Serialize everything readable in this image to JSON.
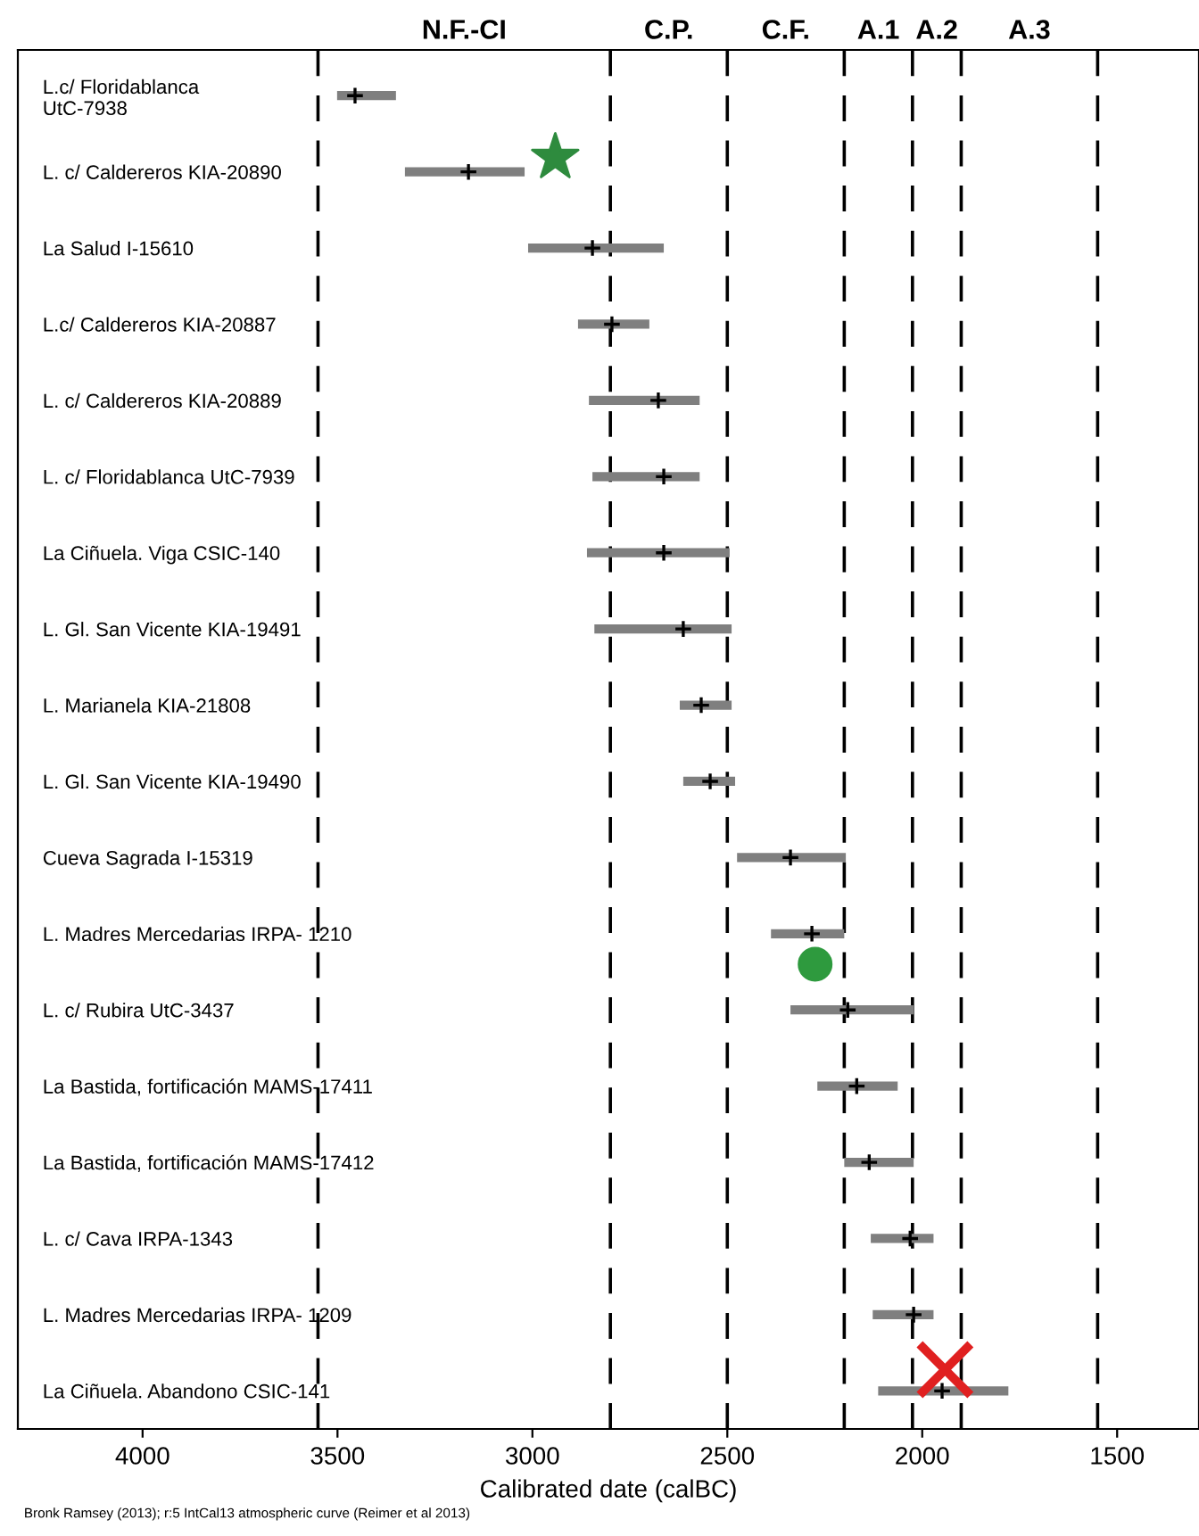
{
  "chart_data": {
    "type": "bar",
    "orientation": "horizontal",
    "xlabel": "Calibrated date (calBC)",
    "categories": [
      "L.c/ Floridablanca\nUtC-7938",
      "L. c/ Caldereros KIA-20890",
      "La Salud I-15610",
      "L.c/ Caldereros KIA-20887",
      "L. c/ Caldereros KIA-20889",
      "L. c/ Floridablanca UtC-7939",
      "La Ciñuela. Viga CSIC-140",
      "L. Gl. San Vicente KIA-19491",
      "L. Marianela KIA-21808",
      "L. Gl. San Vicente KIA-19490",
      "Cueva Sagrada I-15319",
      "L. Madres Mercedarias IRPA- 1210",
      "L. c/ Rubira UtC-3437",
      "La Bastida, fortificación MAMS-17411",
      "La Bastida, fortificación MAMS-17412",
      "L. c/ Cava IRPA-1343",
      "L. Madres Mercedarias IRPA- 1209",
      "La Ciñuela. Abandono CSIC-141"
    ],
    "series": [
      {
        "color": "#7f7f7f",
        "base": [
          3350,
          3020,
          2663,
          2700,
          2571,
          2571,
          2494,
          2489,
          2489,
          2480,
          2196,
          2200,
          2022,
          2063,
          2022,
          1971,
          1971,
          1779
        ],
        "values": [
          151,
          307,
          348,
          183,
          284,
          275,
          366,
          352,
          133,
          133,
          279,
          188,
          316,
          206,
          178,
          161,
          156,
          334
        ]
      },
      {
        "type": "scatter",
        "marker": "cross",
        "color": "#000000",
        "values": [
          3455,
          3164,
          2846,
          2796,
          2677,
          2663,
          2663,
          2613,
          2567,
          2544,
          2338,
          2283,
          2191,
          2168,
          2136,
          2031,
          2022,
          1949
        ]
      }
    ],
    "xlim": [
      4320,
      1290
    ],
    "xticks": [
      4000,
      3500,
      3000,
      2500,
      2000,
      1500
    ],
    "ref_lines": [
      {
        "axis": "x",
        "value": 3550,
        "color": "#000000",
        "line_style": "dashed"
      },
      {
        "axis": "x",
        "value": 2800,
        "color": "#000000",
        "line_style": "dashed"
      },
      {
        "axis": "x",
        "value": 2500,
        "color": "#000000",
        "line_style": "dashed"
      },
      {
        "axis": "x",
        "value": 2200,
        "color": "#000000",
        "line_style": "dashed"
      },
      {
        "axis": "x",
        "value": 2025,
        "color": "#000000",
        "line_style": "dashed"
      },
      {
        "axis": "x",
        "value": 1900,
        "color": "#000000",
        "line_style": "dashed"
      },
      {
        "axis": "x",
        "value": 1550,
        "color": "#000000",
        "line_style": "dashed"
      }
    ],
    "annotations": [
      "N.F.-CI",
      "C.P.",
      "C.F.",
      "A.1",
      "A.2",
      "A.3",
      "Bronk Ramsey (2013); r:5 IntCal13 atmospheric curve (Reimer et al 2013)"
    ],
    "grid": false,
    "legend": false
  }
}
